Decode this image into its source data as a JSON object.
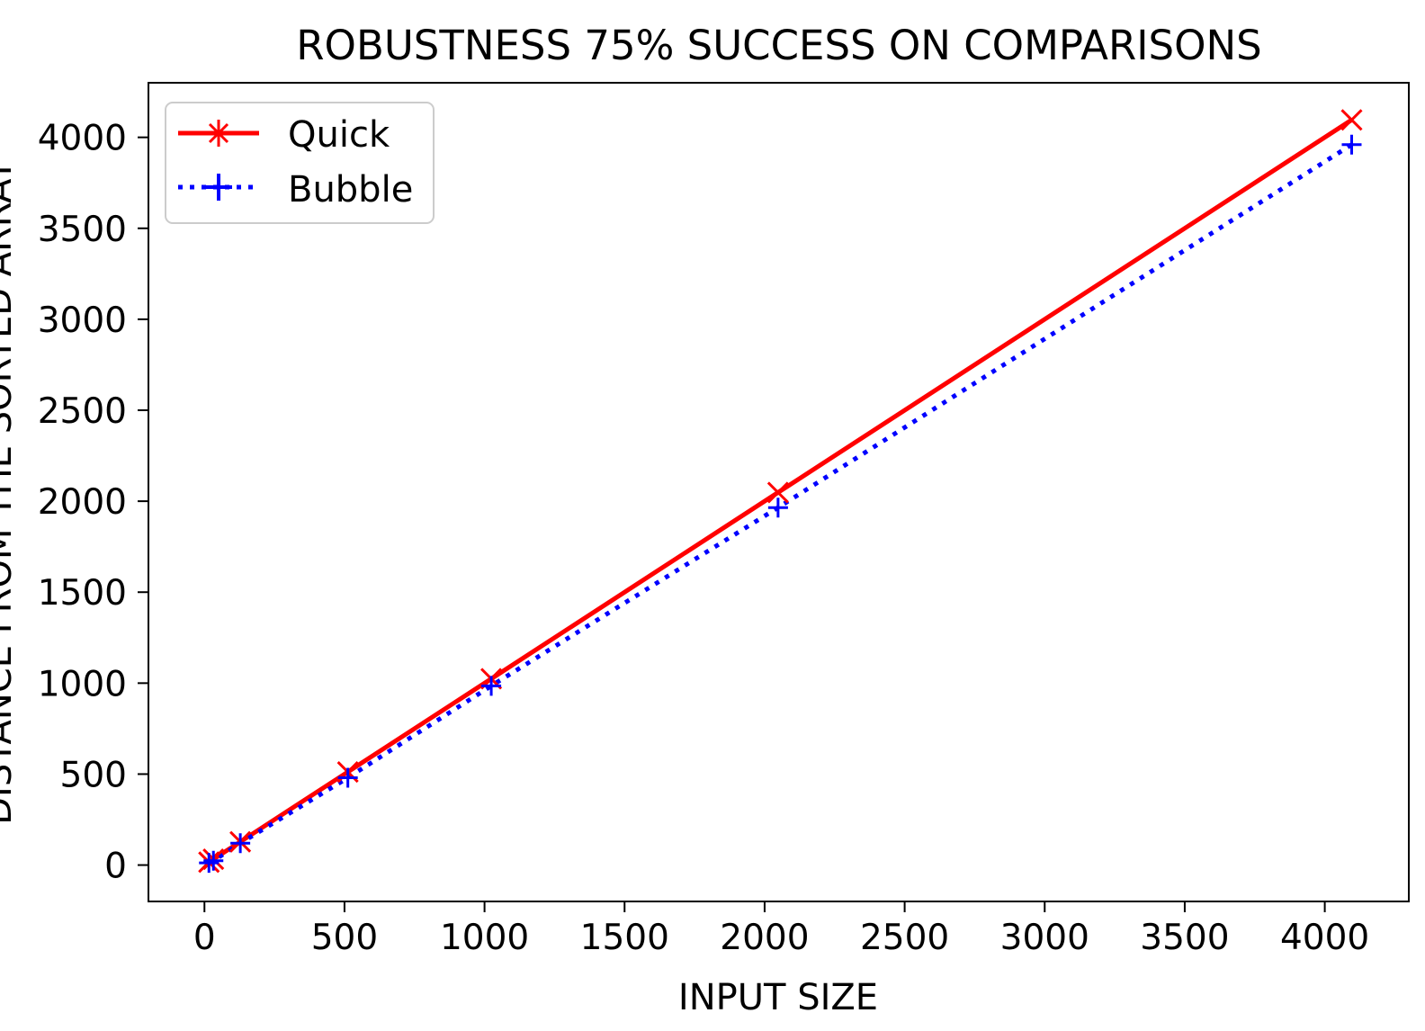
{
  "chart_data": {
    "type": "line",
    "title": "ROBUSTNESS 75% SUCCESS ON COMPARISONS",
    "xlabel": "INPUT SIZE",
    "ylabel": "DISTANCE FROM THE SORTED ARRAY",
    "xlim": [
      -200,
      4300
    ],
    "ylim": [
      -200,
      4300
    ],
    "xticks": [
      0,
      500,
      1000,
      1500,
      2000,
      2500,
      3000,
      3500,
      4000
    ],
    "yticks": [
      0,
      500,
      1000,
      1500,
      2000,
      2500,
      3000,
      3500,
      4000
    ],
    "grid": false,
    "legend_position": "top-left",
    "series": [
      {
        "name": "Quick",
        "color": "#ff0000",
        "line_style": "solid",
        "marker": "x",
        "x": [
          16,
          32,
          128,
          512,
          1024,
          2048,
          4096
        ],
        "y": [
          16,
          32,
          128,
          512,
          1024,
          2048,
          4096
        ]
      },
      {
        "name": "Bubble",
        "color": "#0000ff",
        "line_style": "dotted",
        "marker": "+",
        "x": [
          16,
          32,
          128,
          512,
          1024,
          2048,
          4096
        ],
        "y": [
          12,
          24,
          120,
          480,
          985,
          1965,
          3960
        ]
      }
    ]
  }
}
